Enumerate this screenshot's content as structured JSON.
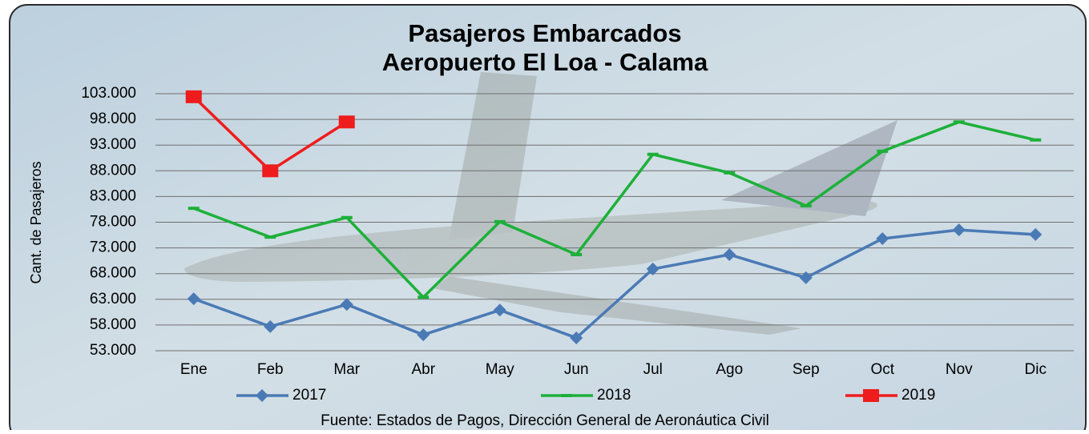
{
  "chart_data": {
    "type": "line",
    "title": "Pasajeros  Embarcados",
    "subtitle": "Aeropuerto El Loa - Calama",
    "y_label": "Cant. de Pasajeros",
    "source": "Fuente: Estados de Pagos, Dirección General de Aeronáutica Civil",
    "categories": [
      "Ene",
      "Feb",
      "Mar",
      "Abr",
      "May",
      "Jun",
      "Jul",
      "Ago",
      "Sep",
      "Oct",
      "Nov",
      "Dic"
    ],
    "series": [
      {
        "name": "2017",
        "color": "#4a7ab5",
        "marker": "diamond",
        "values": [
          63100,
          57700,
          62000,
          56100,
          60900,
          55500,
          68900,
          71700,
          67200,
          74800,
          76500,
          75600
        ]
      },
      {
        "name": "2018",
        "color": "#1db03a",
        "marker": "dash",
        "values": [
          80700,
          75100,
          78900,
          63400,
          78100,
          71700,
          91200,
          87600,
          81200,
          91800,
          97500,
          94000
        ]
      },
      {
        "name": "2019",
        "color": "#ee1c1c",
        "marker": "square",
        "values": [
          102400,
          88000,
          97500,
          null,
          null,
          null,
          null,
          null,
          null,
          null,
          null,
          null
        ]
      }
    ],
    "ylim": [
      53000,
      103000
    ],
    "yticks": [
      {
        "value": 53000,
        "label": "53.000"
      },
      {
        "value": 58000,
        "label": "58.000"
      },
      {
        "value": 63000,
        "label": "63.000"
      },
      {
        "value": 68000,
        "label": "68.000"
      },
      {
        "value": 73000,
        "label": "73.000"
      },
      {
        "value": 78000,
        "label": "78.000"
      },
      {
        "value": 83000,
        "label": "83.000"
      },
      {
        "value": 88000,
        "label": "88.000"
      },
      {
        "value": 93000,
        "label": "93.000"
      },
      {
        "value": 98000,
        "label": "98.000"
      },
      {
        "value": 103000,
        "label": "103.000"
      }
    ],
    "grid": true,
    "legend": "bottom"
  }
}
